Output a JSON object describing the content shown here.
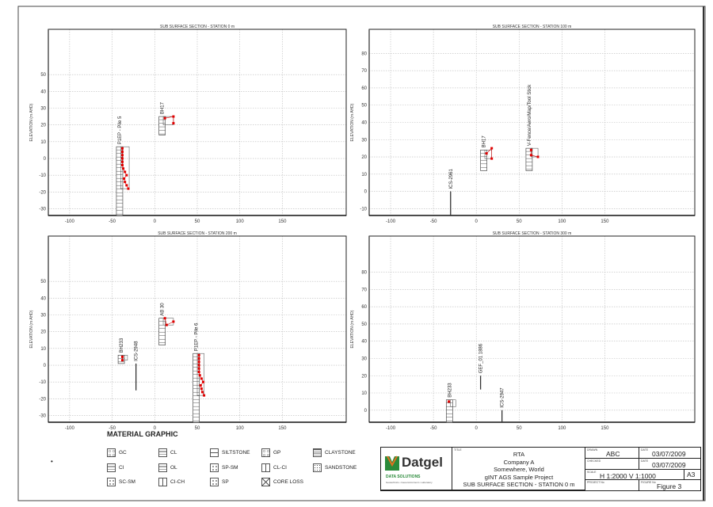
{
  "panels": [
    {
      "title": "SUB SURFACE SECTION - STATION 0 m",
      "ylabel": "ELEVATION (m AHD)",
      "xticks": [
        -100,
        -50,
        0,
        50,
        100,
        150
      ],
      "yticks": [
        50,
        40,
        30,
        20,
        10,
        0,
        -10,
        -20,
        -30
      ],
      "ylim": [
        -34,
        77
      ],
      "xlim": [
        -125,
        225
      ],
      "boreholes": [
        {
          "name": "P1EP - Pile 5",
          "x": -45,
          "top": 7,
          "bottom": -34,
          "testbox": [
            -40,
            -30,
            7,
            -18
          ],
          "points": [
            [
              -38,
              6
            ],
            [
              -38,
              4
            ],
            [
              -38,
              2
            ],
            [
              -38,
              0
            ],
            [
              -38,
              -2
            ],
            [
              -38,
              -4
            ],
            [
              -37,
              -6
            ],
            [
              -35,
              -8
            ],
            [
              -33,
              -10
            ],
            [
              -36,
              -12
            ],
            [
              -35,
              -14
            ],
            [
              -33,
              -16
            ],
            [
              -31,
              -18
            ]
          ]
        },
        {
          "name": "BH17",
          "x": 5,
          "top": 25,
          "bottom": 14,
          "testbox": [
            10,
            22,
            25,
            20
          ],
          "points": [
            [
              12,
              24
            ],
            [
              22,
              25
            ],
            [
              22,
              21
            ]
          ]
        }
      ],
      "lines": []
    },
    {
      "title": "SUB SURFACE SECTION - STATION 100 m",
      "ylabel": "ELEVATION (m AHD)",
      "xticks": [
        -100,
        -50,
        0,
        50,
        100,
        150
      ],
      "yticks": [
        80,
        70,
        60,
        50,
        40,
        30,
        20,
        10,
        0,
        -10
      ],
      "ylim": [
        -14,
        94
      ],
      "xlim": [
        -125,
        255
      ],
      "boreholes": [
        {
          "name": "BH17",
          "x": 5,
          "top": 24,
          "bottom": 12,
          "testbox": [
            10,
            18,
            24,
            19
          ],
          "points": [
            [
              12,
              22
            ],
            [
              18,
              25
            ],
            [
              18,
              19
            ]
          ]
        },
        {
          "name": "V-Fence/Aero/Map/Tool Stick",
          "x": 58,
          "top": 25,
          "bottom": 12,
          "testbox": [
            64,
            72,
            25,
            20
          ],
          "points": [
            [
              64,
              24
            ],
            [
              64,
              21
            ],
            [
              72,
              20
            ]
          ]
        }
      ],
      "lines": [
        {
          "name": "ICS-2961",
          "x": -30,
          "top": 0,
          "bottom": -14
        }
      ]
    },
    {
      "title": "SUB SURFACE SECTION - STATION 200 m",
      "ylabel": "ELEVATION (m AHD)",
      "xticks": [
        -100,
        -50,
        0,
        50,
        100,
        150
      ],
      "yticks": [
        50,
        40,
        30,
        20,
        10,
        0,
        -10,
        -20,
        -30
      ],
      "ylim": [
        -34,
        77
      ],
      "xlim": [
        -125,
        225
      ],
      "boreholes": [
        {
          "name": "BH233",
          "x": -43,
          "top": 6,
          "bottom": 1,
          "testbox": [
            -38,
            -32,
            6,
            3
          ],
          "points": [
            [
              -38,
              5
            ],
            [
              -38,
              3
            ]
          ]
        },
        {
          "name": "AB 30",
          "x": 5,
          "top": 28,
          "bottom": 12,
          "testbox": [
            10,
            22,
            28,
            24
          ],
          "points": [
            [
              12,
              28
            ],
            [
              14,
              24
            ],
            [
              22,
              26
            ]
          ]
        },
        {
          "name": "P1EP - Pile 6",
          "x": 45,
          "top": 7,
          "bottom": -34,
          "testbox": [
            50,
            58,
            7,
            -18
          ],
          "points": [
            [
              52,
              6
            ],
            [
              52,
              4
            ],
            [
              52,
              2
            ],
            [
              52,
              0
            ],
            [
              52,
              -2
            ],
            [
              52,
              -4
            ],
            [
              53,
              -6
            ],
            [
              55,
              -8
            ],
            [
              57,
              -10
            ],
            [
              54,
              -12
            ],
            [
              55,
              -14
            ],
            [
              56,
              -16
            ],
            [
              58,
              -18
            ]
          ]
        }
      ],
      "lines": [
        {
          "name": "ICS-2948",
          "x": -22,
          "top": 1,
          "bottom": -15
        }
      ]
    },
    {
      "title": "SUB SURFACE SECTION - STATION 300 m",
      "ylabel": "ELEVATION (m AHD)",
      "xticks": [
        -100,
        -50,
        0,
        50,
        100,
        150
      ],
      "yticks": [
        80,
        70,
        60,
        50,
        40,
        30,
        20,
        10,
        0
      ],
      "ylim": [
        -7,
        101
      ],
      "xlim": [
        -125,
        255
      ],
      "boreholes": [
        {
          "name": "BH233",
          "x": -35,
          "top": 6,
          "bottom": -7,
          "testbox": [
            -30,
            -24,
            6,
            2
          ],
          "points": [
            [
              -32,
              5
            ]
          ]
        }
      ],
      "lines": [
        {
          "name": "GEF_01 1886",
          "x": 5,
          "top": 20,
          "bottom": 12
        },
        {
          "name": "ICS-2947",
          "x": 30,
          "top": 0,
          "bottom": -7
        }
      ]
    }
  ],
  "legend": {
    "title": "MATERIAL GRAPHIC",
    "items": [
      "GC",
      "CL",
      "SILTSTONE",
      "GP",
      "CLAYSTONE",
      "CI",
      "OL",
      "SP-SM",
      "CL-CI",
      "SANDSTONE",
      "SC-SM",
      "CI-CH",
      "SP",
      "CORE LOSS"
    ]
  },
  "title_block": {
    "logo": "Datgel",
    "logo_sub": "DATA SOLUTIONS",
    "logo_tag": "Geotechnics • Geoenvironment • Laboratory",
    "title_caption": "TITLE",
    "title_lines": [
      "RTA",
      "Company A",
      "Somewhere, World",
      "gINT AGS Sample Project",
      "SUB SURFACE SECTION - STATION 0 m"
    ],
    "drawn_caption": "DRAWN",
    "drawn": "ABC",
    "date_caption": "DATE",
    "drawn_date": "03/07/2009",
    "checked_caption": "CHECKED",
    "checked_date": "03/07/2009",
    "scale_caption": "SCALE",
    "scale": "H 1:2000  V 1:1000",
    "sheet_size": "A3",
    "project_caption": "PROJECT No",
    "figure_caption": "FIGURE No",
    "figure": "Figure 3"
  },
  "colors": {
    "point": "#e00000",
    "grid": "#bbbbbb",
    "logo_green": "#2a8a3a",
    "logo_orange": "#e07020"
  }
}
